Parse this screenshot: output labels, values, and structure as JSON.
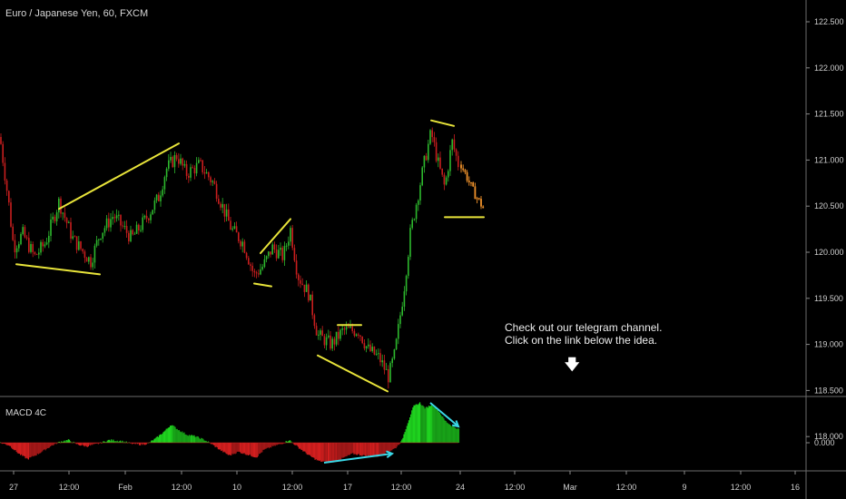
{
  "header": {
    "title": "Euro / Japanese Yen, 60, FXCM"
  },
  "indicator": {
    "title": "MACD 4C"
  },
  "annotation": {
    "line1": "Check out our telegram channel.",
    "line2": "Click on the link below the idea.",
    "arrow_icon": "arrow-down-icon"
  },
  "colors": {
    "background": "#000000",
    "bull": "#2db82d",
    "bear": "#c81e1e",
    "projection": "#f0922b",
    "pattern_lines": "#e8e43a",
    "divergence_arrows": "#3ad7e6",
    "macd_up": "#1fd31f",
    "macd_down": "#d31f1f"
  },
  "chart_data": [
    {
      "type": "candlestick",
      "title": "Euro / Japanese Yen, 60, FXCM",
      "ylim": [
        117.85,
        122.6
      ],
      "yticks": [
        "122.500",
        "122.000",
        "121.500",
        "121.000",
        "120.500",
        "120.000",
        "119.500",
        "119.000",
        "118.500",
        "118.000"
      ],
      "xticks": [
        "27",
        "12:00",
        "Feb",
        "12:00",
        "10",
        "12:00",
        "17",
        "12:00",
        "24",
        "12:00",
        "Mar",
        "12:00",
        "9",
        "12:00",
        "16"
      ],
      "price_path": [
        [
          0,
          121.25
        ],
        [
          10,
          120.5
        ],
        [
          15,
          120.05
        ],
        [
          25,
          120.2
        ],
        [
          38,
          119.95
        ],
        [
          50,
          120.1
        ],
        [
          65,
          120.55
        ],
        [
          80,
          120.15
        ],
        [
          100,
          119.9
        ],
        [
          110,
          120.2
        ],
        [
          125,
          120.4
        ],
        [
          145,
          120.15
        ],
        [
          160,
          120.35
        ],
        [
          175,
          120.6
        ],
        [
          183,
          120.9
        ],
        [
          195,
          121.05
        ],
        [
          205,
          120.85
        ],
        [
          220,
          120.95
        ],
        [
          235,
          120.75
        ],
        [
          245,
          120.5
        ],
        [
          255,
          120.25
        ],
        [
          268,
          120.1
        ],
        [
          280,
          119.75
        ],
        [
          290,
          119.85
        ],
        [
          300,
          120.05
        ],
        [
          312,
          119.95
        ],
        [
          320,
          120.25
        ],
        [
          328,
          119.75
        ],
        [
          340,
          119.55
        ],
        [
          350,
          119.1
        ],
        [
          365,
          119.0
        ],
        [
          378,
          119.15
        ],
        [
          395,
          119.15
        ],
        [
          405,
          118.95
        ],
        [
          418,
          118.85
        ],
        [
          428,
          118.65
        ],
        [
          435,
          118.9
        ],
        [
          445,
          119.6
        ],
        [
          452,
          120.2
        ],
        [
          460,
          120.6
        ],
        [
          468,
          121.0
        ],
        [
          475,
          121.3
        ],
        [
          483,
          120.95
        ],
        [
          490,
          120.7
        ],
        [
          498,
          121.2
        ],
        [
          505,
          120.95
        ]
      ],
      "projection_path": [
        [
          508,
          120.95
        ],
        [
          515,
          120.8
        ],
        [
          522,
          120.65
        ],
        [
          528,
          120.55
        ],
        [
          534,
          120.45
        ]
      ],
      "patterns": [
        {
          "name": "wedge-1-top",
          "from": [
            65,
            120.47
          ],
          "to": [
            197,
            121.18
          ]
        },
        {
          "name": "wedge-1-bottom",
          "from": [
            18,
            119.87
          ],
          "to": [
            110,
            119.76
          ]
        },
        {
          "name": "pennant-top",
          "from": [
            287,
            119.99
          ],
          "to": [
            320,
            120.36
          ]
        },
        {
          "name": "pennant-bottom",
          "from": [
            280,
            119.66
          ],
          "to": [
            299,
            119.63
          ]
        },
        {
          "name": "wedge-2-bottom",
          "from": [
            350,
            118.88
          ],
          "to": [
            427,
            118.49
          ]
        },
        {
          "name": "wedge-2-top",
          "from": [
            372,
            119.21
          ],
          "to": [
            398,
            119.21
          ]
        },
        {
          "name": "flag-top",
          "from": [
            475,
            121.43
          ],
          "to": [
            500,
            121.37
          ]
        },
        {
          "name": "flag-bottom",
          "from": [
            490,
            120.38
          ],
          "to": [
            533,
            120.38
          ]
        }
      ]
    },
    {
      "type": "area",
      "title": "MACD 4C",
      "yticks": [
        "0.000"
      ],
      "zero_label": "0.000",
      "histogram": [
        [
          0,
          0
        ],
        [
          10,
          -3
        ],
        [
          20,
          -12
        ],
        [
          30,
          -18
        ],
        [
          42,
          -12
        ],
        [
          55,
          -4
        ],
        [
          65,
          1
        ],
        [
          75,
          3
        ],
        [
          85,
          -2
        ],
        [
          95,
          -4
        ],
        [
          108,
          -1
        ],
        [
          120,
          3
        ],
        [
          132,
          2
        ],
        [
          145,
          -1
        ],
        [
          155,
          -2
        ],
        [
          162,
          -1
        ],
        [
          170,
          4
        ],
        [
          180,
          12
        ],
        [
          188,
          20
        ],
        [
          195,
          15
        ],
        [
          205,
          9
        ],
        [
          215,
          7
        ],
        [
          225,
          3
        ],
        [
          232,
          -1
        ],
        [
          242,
          -8
        ],
        [
          252,
          -14
        ],
        [
          262,
          -10
        ],
        [
          272,
          -13
        ],
        [
          282,
          -16
        ],
        [
          290,
          -8
        ],
        [
          300,
          -4
        ],
        [
          310,
          -1
        ],
        [
          318,
          3
        ],
        [
          328,
          -5
        ],
        [
          340,
          -14
        ],
        [
          350,
          -20
        ],
        [
          362,
          -22
        ],
        [
          375,
          -18
        ],
        [
          388,
          -12
        ],
        [
          400,
          -14
        ],
        [
          415,
          -15
        ],
        [
          425,
          -11
        ],
        [
          435,
          -6
        ],
        [
          442,
          2
        ],
        [
          448,
          20
        ],
        [
          455,
          40
        ],
        [
          462,
          44
        ],
        [
          468,
          38
        ],
        [
          475,
          42
        ],
        [
          482,
          36
        ],
        [
          490,
          24
        ],
        [
          498,
          18
        ],
        [
          505,
          15
        ]
      ],
      "divergence_arrows": [
        {
          "name": "bullish-divergence-arrow",
          "from": [
            357,
            -22
          ],
          "to": [
            432,
            -12
          ]
        },
        {
          "name": "bearish-divergence-arrow",
          "from": [
            474,
            44
          ],
          "to": [
            505,
            18
          ]
        }
      ]
    }
  ]
}
